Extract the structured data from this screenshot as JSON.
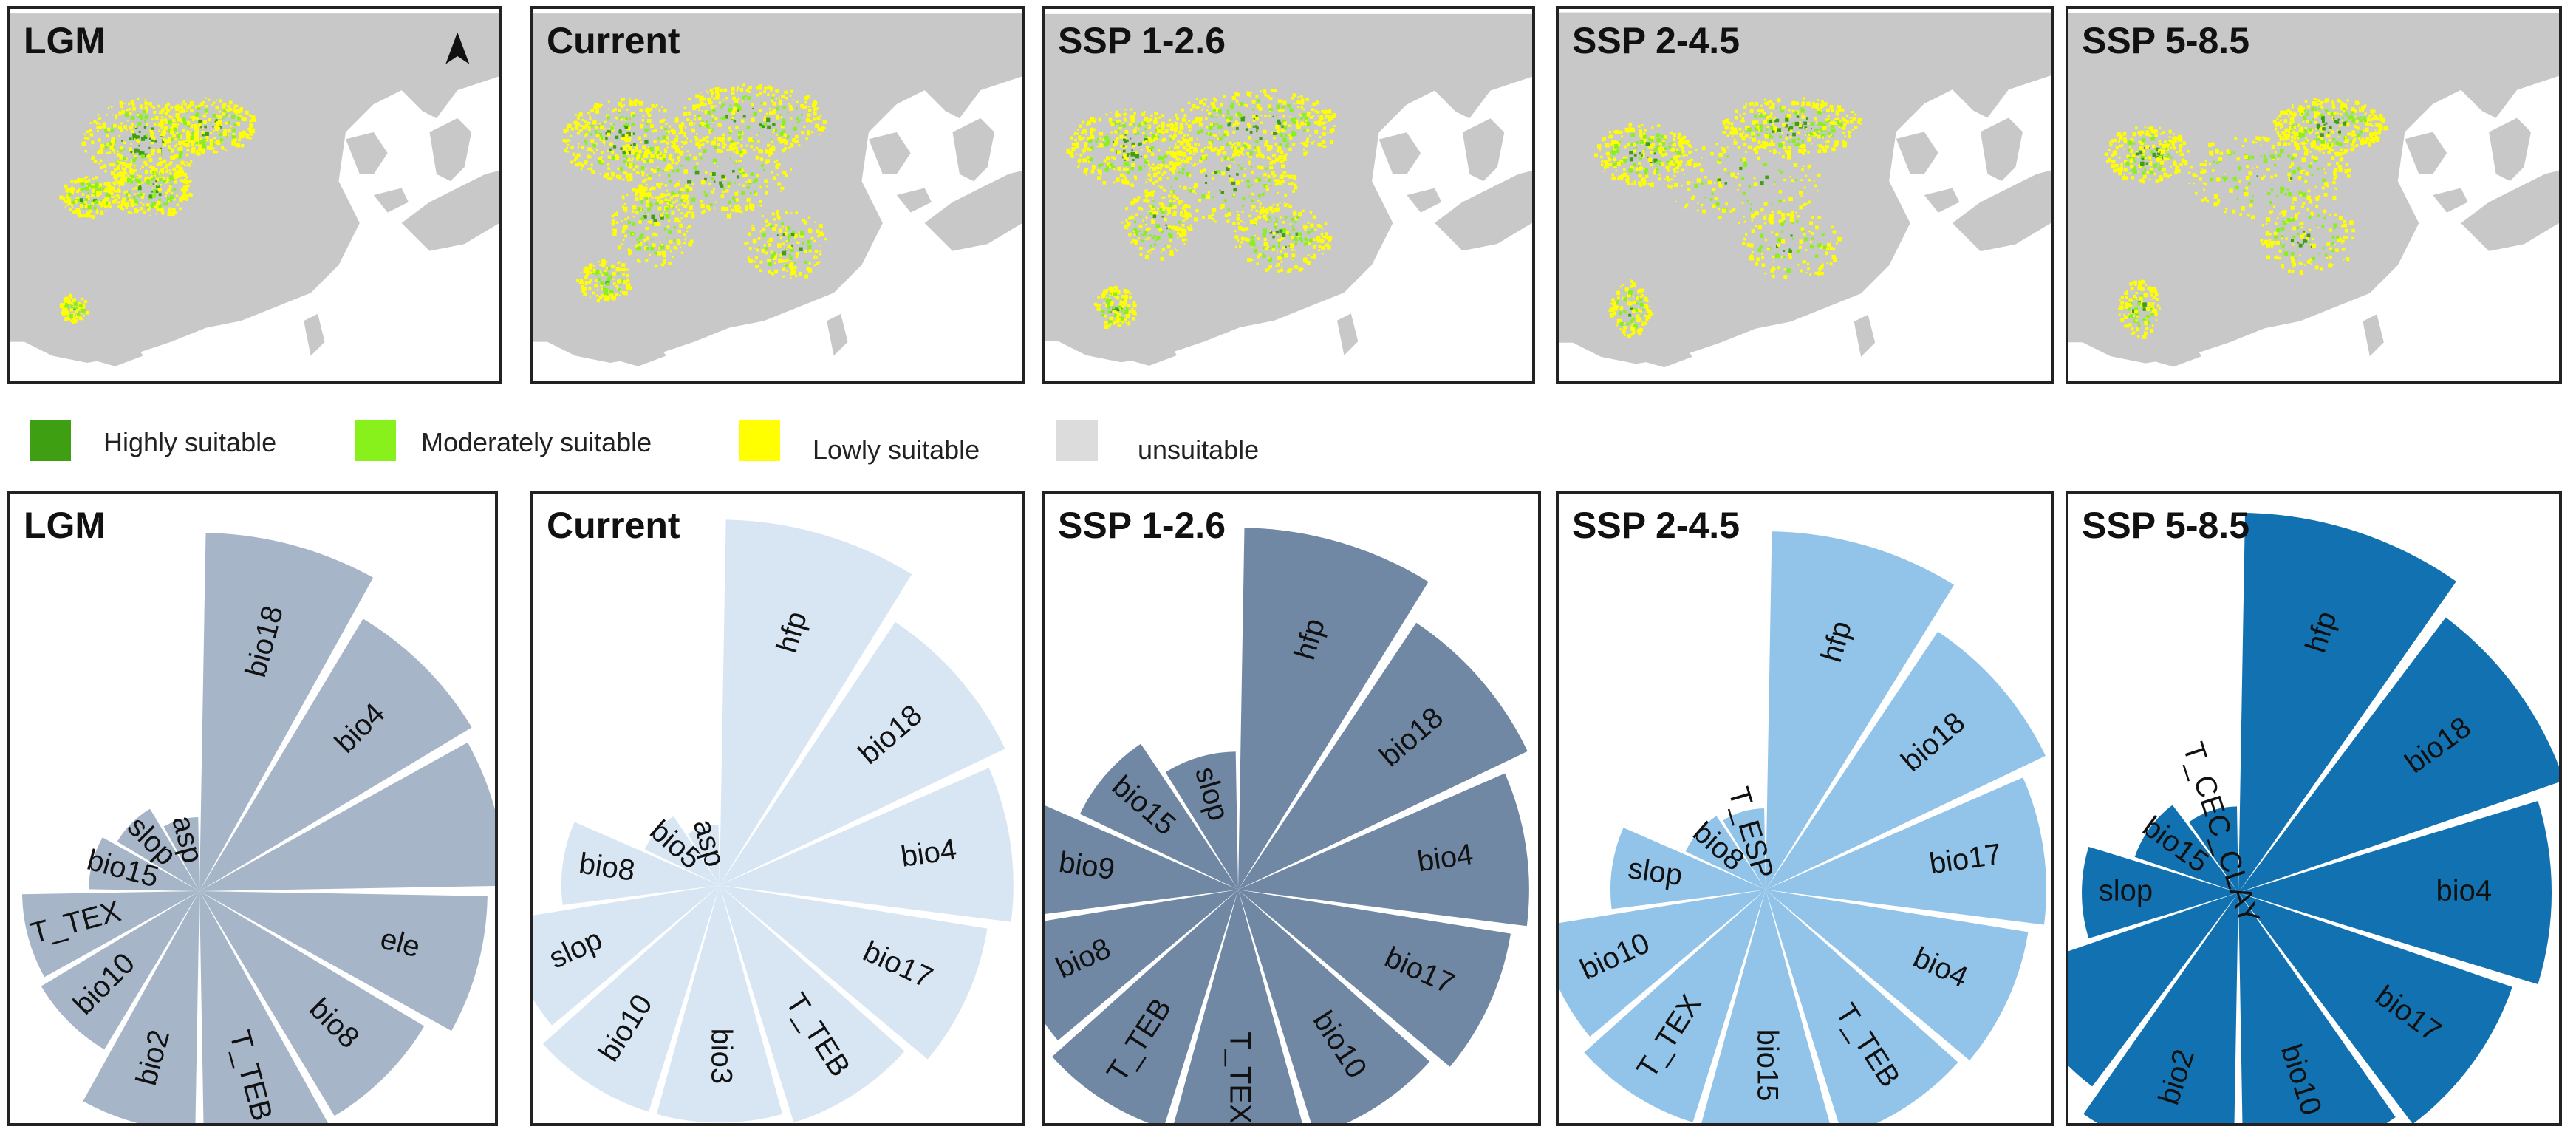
{
  "maps": [
    {
      "title": "LGM",
      "variant": "lgm",
      "north_arrow": true
    },
    {
      "title": "Current",
      "variant": "current"
    },
    {
      "title": "SSP 1-2.6",
      "variant": "ssp126"
    },
    {
      "title": "SSP 2-4.5",
      "variant": "ssp245"
    },
    {
      "title": "SSP 5-8.5",
      "variant": "ssp585"
    }
  ],
  "legend": [
    {
      "label": "Highly suitable",
      "color": "#3f9f12"
    },
    {
      "label": "Moderately suitable",
      "color": "#88f01a"
    },
    {
      "label": "Lowly suitable",
      "color": "#ffff00"
    },
    {
      "label": "unsuitable",
      "color": "#dcdcdc"
    }
  ],
  "colors": {
    "land": "#c8c8c8",
    "sea": "#ffffff",
    "rose_lgm": "#a6b5c8",
    "rose_current": "#d8e6f4",
    "rose_ssp126": "#7088a4",
    "rose_ssp245": "#92c3e8",
    "rose_ssp585": "#1272b1"
  },
  "roses": [
    {
      "title": "LGM",
      "color_key": "rose_lgm",
      "labels": [
        "bio18",
        "bio4",
        "",
        "ele",
        "bio8",
        "T_TEB",
        "bio2",
        "bio10",
        "T_TEX",
        "bio15",
        "slop",
        "asp"
      ],
      "radii": [
        0.97,
        0.86,
        0.83,
        0.78,
        0.71,
        0.72,
        0.65,
        0.5,
        0.48,
        0.3,
        0.26,
        0.2
      ]
    },
    {
      "title": "Current",
      "color_key": "rose_current",
      "labels": [
        "hfp",
        "bio18",
        "bio4",
        "bio17",
        "T_TEB",
        "bio3",
        "bio10",
        "slop",
        "bio8",
        "bio5",
        "asp"
      ],
      "radii": [
        0.97,
        0.84,
        0.78,
        0.72,
        0.66,
        0.63,
        0.63,
        0.58,
        0.42,
        0.22,
        0.16
      ]
    },
    {
      "title": "SSP 1-2.6",
      "color_key": "rose_ssp126",
      "labels": [
        "hfp",
        "bio18",
        "bio4",
        "bio17",
        "bio10",
        "T_TEX",
        "T_TEB",
        "bio8",
        "bio9",
        "bio15",
        "slop"
      ],
      "radii": [
        0.97,
        0.86,
        0.78,
        0.74,
        0.69,
        0.7,
        0.67,
        0.63,
        0.57,
        0.47,
        0.37
      ]
    },
    {
      "title": "SSP 2-4.5",
      "color_key": "rose_ssp245",
      "labels": [
        "hfp",
        "bio18",
        "bio17",
        "bio4",
        "T_TEB",
        "bio15",
        "T_TEX",
        "bio10",
        "slop",
        "bio8",
        "T_ESP"
      ],
      "radii": [
        0.97,
        0.84,
        0.76,
        0.72,
        0.7,
        0.66,
        0.66,
        0.62,
        0.42,
        0.24,
        0.22
      ]
    },
    {
      "title": "SSP 5-8.5",
      "color_key": "rose_ssp585",
      "labels": [
        "hfp",
        "bio18",
        "bio4",
        "bio17",
        "bio10",
        "bio2",
        "",
        "slop",
        "bio15",
        "T_CEC_CLAY"
      ],
      "radii": [
        0.97,
        0.88,
        0.8,
        0.74,
        0.7,
        0.69,
        0.62,
        0.4,
        0.28,
        0.22
      ]
    }
  ]
}
